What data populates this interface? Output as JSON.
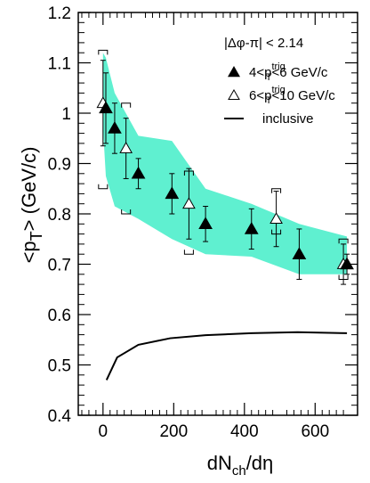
{
  "chart_data": {
    "type": "scatter",
    "xlabel": "dN_ch/dη",
    "ylabel": "<p_T> (GeV/c)",
    "xlim": [
      -70,
      720
    ],
    "ylim": [
      0.4,
      1.2
    ],
    "x_ticks": [
      0,
      200,
      400,
      600
    ],
    "x_tick_labels": [
      "0",
      "200",
      "400",
      "600"
    ],
    "y_ticks": [
      0.4,
      0.5,
      0.6,
      0.7,
      0.8,
      0.9,
      1.0,
      1.1,
      1.2
    ],
    "y_tick_labels": [
      "0.4",
      "0.5",
      "0.6",
      "0.7",
      "0.8",
      "0.9",
      "1",
      "1.1",
      "1.2"
    ],
    "grid": false,
    "legend_position": "top-right",
    "legend": {
      "header": "|Δφ-π| < 2.14",
      "entries": [
        {
          "series": "filled",
          "pre": "4<p",
          "sub": "T",
          "sup": "trig",
          "post": "<6 GeV/c"
        },
        {
          "series": "open",
          "pre": "6<p",
          "sub": "T",
          "sup": "trig",
          "post": "<10 GeV/c"
        },
        {
          "series": "inclusive",
          "label": "inclusive"
        }
      ]
    },
    "colors": {
      "band": "#5ff0d0",
      "markers": "#000000",
      "open_fill": "#ffffff"
    },
    "series": [
      {
        "marker": "filled-triangle",
        "x": [
          8,
          33,
          100,
          195,
          290,
          420,
          555,
          690
        ],
        "y": [
          1.01,
          0.97,
          0.88,
          0.84,
          0.78,
          0.77,
          0.72,
          0.7
        ],
        "yerr": [
          0.07,
          0.05,
          0.03,
          0.04,
          0.035,
          0.04,
          0.05,
          0.02
        ]
      },
      {
        "marker": "open-triangle",
        "x": [
          0,
          65,
          243,
          490,
          680
        ],
        "y": [
          1.02,
          0.93,
          0.82,
          0.79,
          0.7
        ],
        "yerr": [
          0.085,
          0.06,
          0.07,
          0.055,
          0.04
        ],
        "sys_brackets": [
          [
            0.85,
            1.125
          ],
          [
            0.8,
            1.02
          ],
          [
            0.72,
            0.885
          ],
          [
            0.76,
            0.85
          ],
          [
            0.67,
            0.75
          ]
        ]
      },
      {
        "marker": "line",
        "x": [
          10,
          40,
          100,
          190,
          290,
          420,
          550,
          690
        ],
        "y": [
          0.47,
          0.515,
          0.54,
          0.553,
          0.559,
          0.563,
          0.565,
          0.563
        ]
      }
    ],
    "band": {
      "x": [
        0,
        8,
        33,
        100,
        195,
        290,
        420,
        555,
        690
      ],
      "upper": [
        1.12,
        1.11,
        1.04,
        0.955,
        0.945,
        0.85,
        0.82,
        0.78,
        0.755
      ],
      "lower": [
        0.97,
        0.875,
        0.815,
        0.79,
        0.75,
        0.72,
        0.715,
        0.68,
        0.68
      ]
    }
  }
}
